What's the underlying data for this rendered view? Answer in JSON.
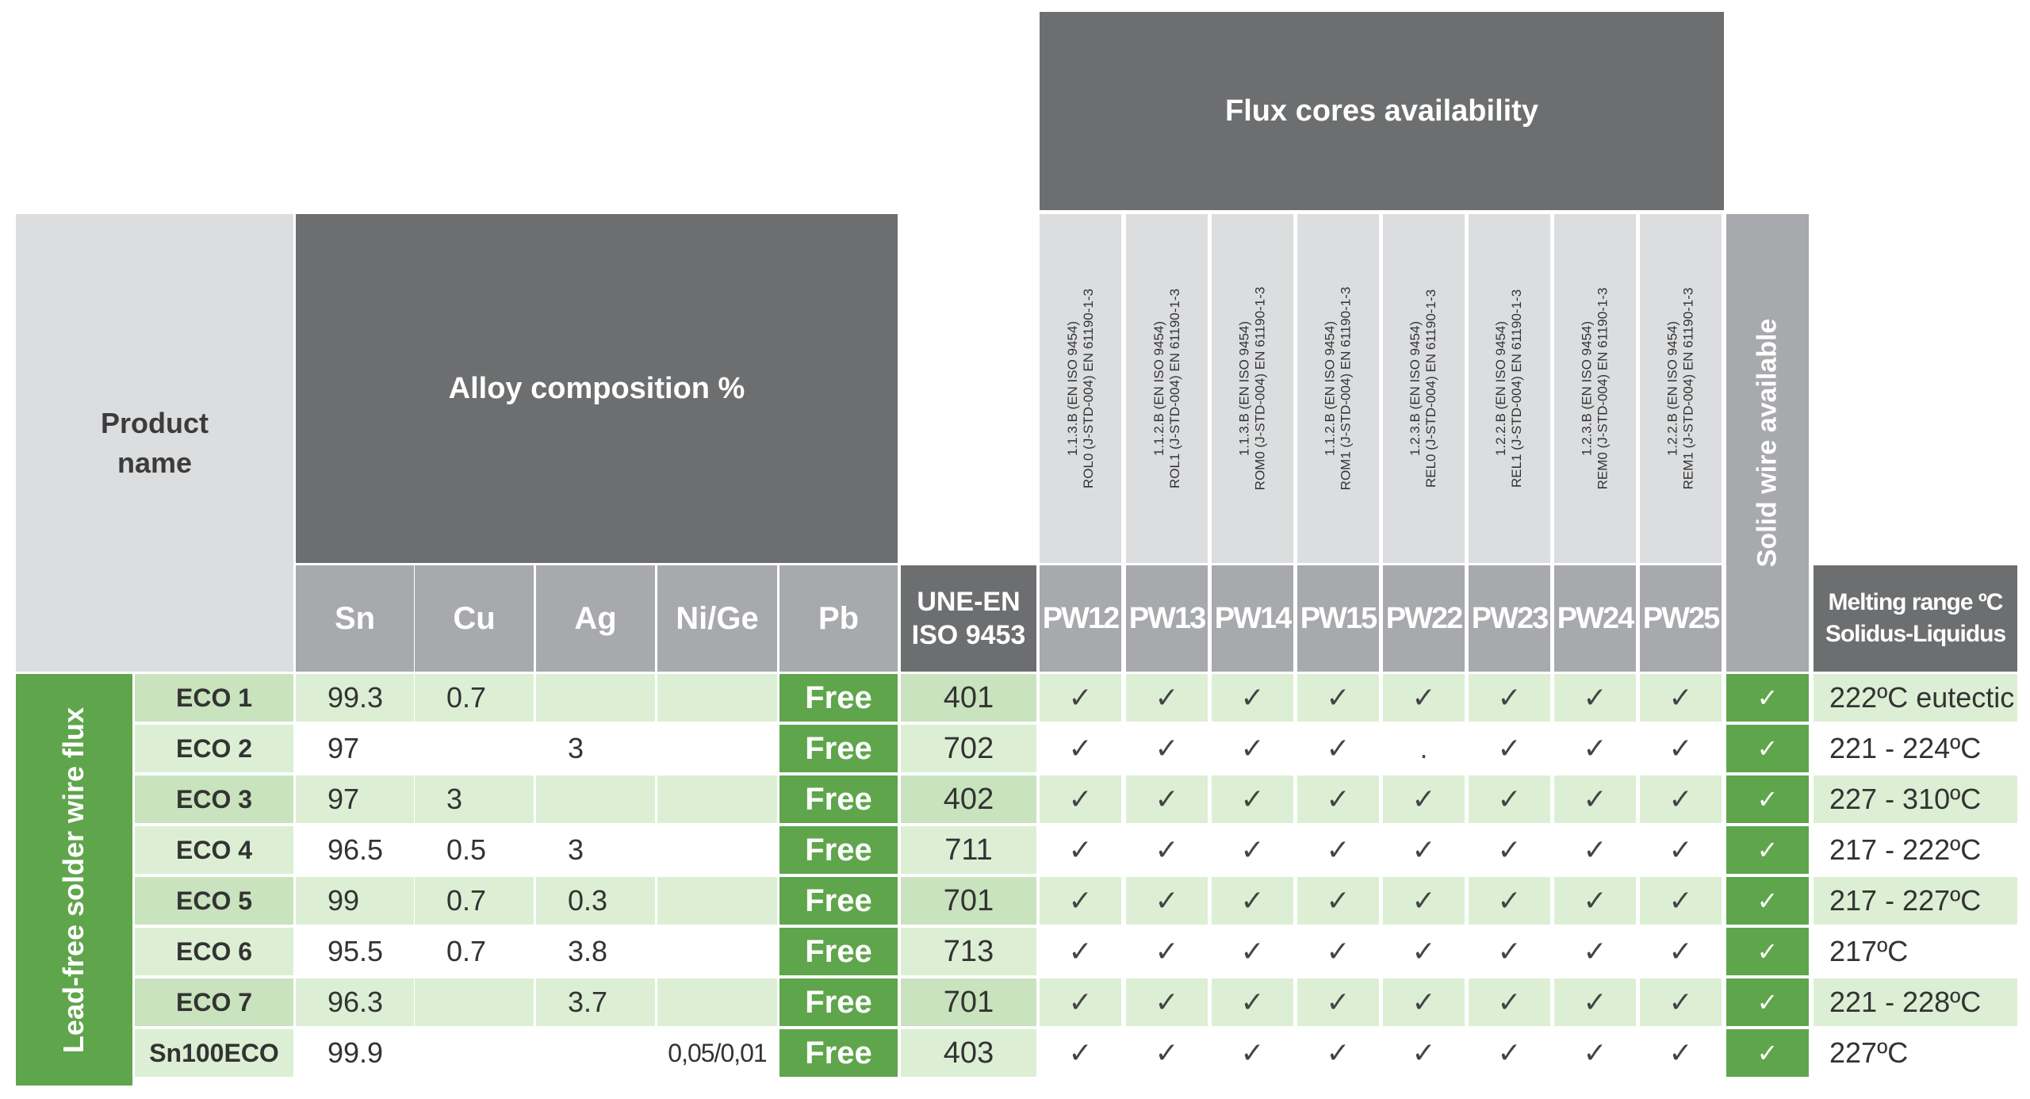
{
  "headers": {
    "flux_cores": "Flux cores availability",
    "product_name_line1": "Product",
    "product_name_line2": "name",
    "alloy_composition": "Alloy composition %",
    "elements": [
      "Sn",
      "Cu",
      "Ag",
      "Ni/Ge",
      "Pb"
    ],
    "une_en_line1": "UNE-EN",
    "une_en_line2": "ISO 9453",
    "pw_codes": [
      "PW12",
      "PW13",
      "PW14",
      "PW15",
      "PW22",
      "PW23",
      "PW24",
      "PW25"
    ],
    "pw_standards": [
      {
        "line1": "1.1.3.B (EN ISO 9454)",
        "line2": "ROL0 (J-STD-004) EN 61190-1-3"
      },
      {
        "line1": "1.1.2.B (EN ISO 9454)",
        "line2": "ROL1 (J-STD-004) EN 61190-1-3"
      },
      {
        "line1": "1.1.3.B (EN ISO 9454)",
        "line2": "ROM0 (J-STD-004) EN 61190-1-3"
      },
      {
        "line1": "1.1.2.B (EN ISO 9454)",
        "line2": "ROM1 (J-STD-004) EN 61190-1-3"
      },
      {
        "line1": "1.2.3.B (EN ISO 9454)",
        "line2": "REL0 (J-STD-004) EN 61190-1-3"
      },
      {
        "line1": "1.2.2.B (EN ISO 9454)",
        "line2": "REL1 (J-STD-004) EN 61190-1-3"
      },
      {
        "line1": "1.2.3.B (EN ISO 9454)",
        "line2": "REM0 (J-STD-004) EN 61190-1-3"
      },
      {
        "line1": "1.2.2.B (EN ISO 9454)",
        "line2": "REM1 (J-STD-004) EN 61190-1-3"
      }
    ],
    "solid_wire": "Solid wire available",
    "melting_line1": "Melting range ºC",
    "melting_line2": "Solidus-Liquidus"
  },
  "side_label": "Lead-free solder wire flux",
  "rows": [
    {
      "name": "ECO 1",
      "sn": "99.3",
      "cu": "0.7",
      "ag": "",
      "ni": "",
      "pb": "Free",
      "iso": "401",
      "pw": [
        "✓",
        "✓",
        "✓",
        "✓",
        "✓",
        "✓",
        "✓",
        "✓"
      ],
      "solid": "✓",
      "melt": "222ºC eutectic"
    },
    {
      "name": "ECO 2",
      "sn": "97",
      "cu": "",
      "ag": "3",
      "ni": "",
      "pb": "Free",
      "iso": "702",
      "pw": [
        "✓",
        "✓",
        "✓",
        "✓",
        ".",
        "✓",
        "✓",
        "✓"
      ],
      "solid": "✓",
      "melt": "221 - 224ºC"
    },
    {
      "name": "ECO 3",
      "sn": "97",
      "cu": "3",
      "ag": "",
      "ni": "",
      "pb": "Free",
      "iso": "402",
      "pw": [
        "✓",
        "✓",
        "✓",
        "✓",
        "✓",
        "✓",
        "✓",
        "✓"
      ],
      "solid": "✓",
      "melt": "227 - 310ºC"
    },
    {
      "name": "ECO 4",
      "sn": "96.5",
      "cu": "0.5",
      "ag": "3",
      "ni": "",
      "pb": "Free",
      "iso": "711",
      "pw": [
        "✓",
        "✓",
        "✓",
        "✓",
        "✓",
        "✓",
        "✓",
        "✓"
      ],
      "solid": "✓",
      "melt": "217 - 222ºC"
    },
    {
      "name": "ECO 5",
      "sn": "99",
      "cu": "0.7",
      "ag": "0.3",
      "ni": "",
      "pb": "Free",
      "iso": "701",
      "pw": [
        "✓",
        "✓",
        "✓",
        "✓",
        "✓",
        "✓",
        "✓",
        "✓"
      ],
      "solid": "✓",
      "melt": "217 - 227ºC"
    },
    {
      "name": "ECO 6",
      "sn": "95.5",
      "cu": "0.7",
      "ag": "3.8",
      "ni": "",
      "pb": "Free",
      "iso": "713",
      "pw": [
        "✓",
        "✓",
        "✓",
        "✓",
        "✓",
        "✓",
        "✓",
        "✓"
      ],
      "solid": "✓",
      "melt": "217ºC"
    },
    {
      "name": "ECO 7",
      "sn": "96.3",
      "cu": "",
      "ag": "3.7",
      "ni": "",
      "pb": "Free",
      "iso": "701",
      "pw": [
        "✓",
        "✓",
        "✓",
        "✓",
        "✓",
        "✓",
        "✓",
        "✓"
      ],
      "solid": "✓",
      "melt": "221 - 228ºC"
    },
    {
      "name": "Sn100ECO",
      "sn": "99.9",
      "cu": "",
      "ag": "",
      "ni": "0,05/0,01",
      "pb": "Free",
      "iso": "403",
      "pw": [
        "✓",
        "✓",
        "✓",
        "✓",
        "✓",
        "✓",
        "✓",
        "✓"
      ],
      "solid": "✓",
      "melt": "227ºC"
    }
  ]
}
